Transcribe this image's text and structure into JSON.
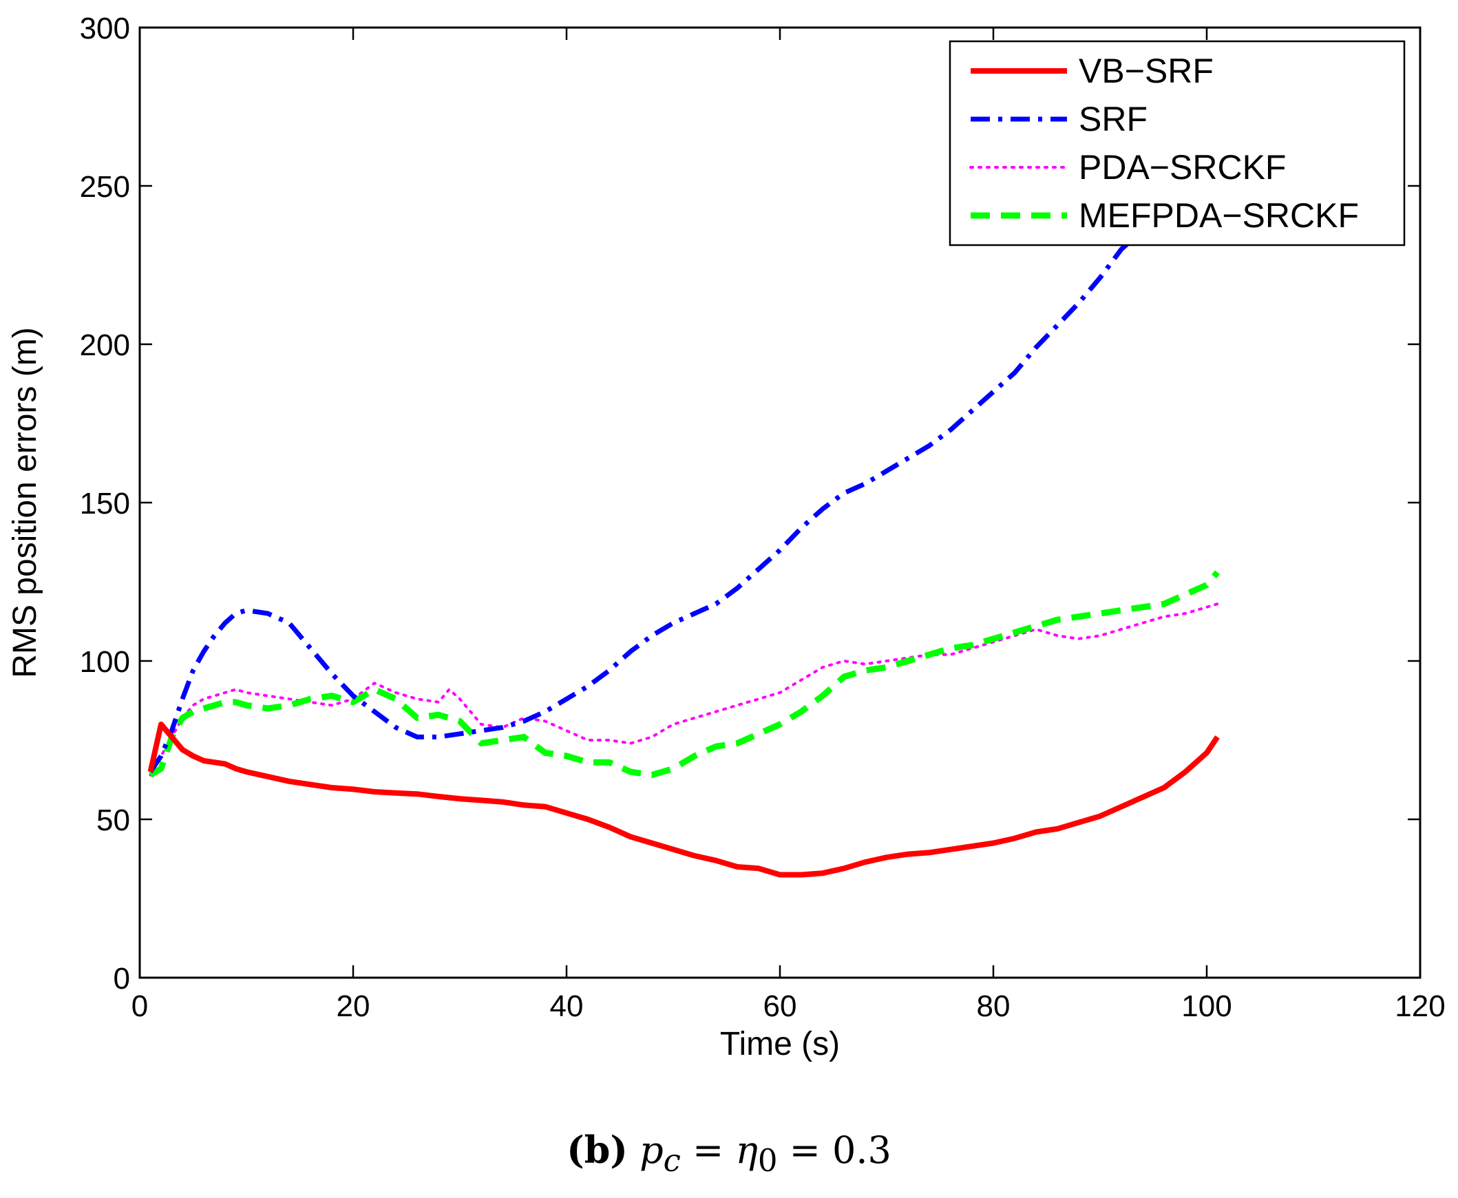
{
  "chart_data": {
    "type": "line",
    "title": "",
    "xlabel": "Time (s)",
    "ylabel": "RMS position errors (m)",
    "xlim": [
      0,
      120
    ],
    "ylim": [
      0,
      300
    ],
    "xticks": [
      0,
      20,
      40,
      60,
      80,
      100,
      120
    ],
    "yticks": [
      0,
      50,
      100,
      150,
      200,
      250,
      300
    ],
    "grid": false,
    "legend_position": "top-right",
    "series": [
      {
        "name": "VB−SRF",
        "color": "#ff0000",
        "style": "solid",
        "x": [
          1,
          2,
          3,
          4,
          5,
          6,
          7,
          8,
          9,
          10,
          12,
          14,
          16,
          18,
          20,
          22,
          24,
          26,
          28,
          30,
          32,
          34,
          36,
          38,
          40,
          42,
          44,
          46,
          48,
          50,
          52,
          54,
          56,
          58,
          60,
          62,
          64,
          66,
          68,
          70,
          72,
          74,
          76,
          78,
          80,
          82,
          84,
          86,
          88,
          90,
          92,
          94,
          96,
          98,
          100,
          101
        ],
        "y": [
          65,
          80,
          76,
          72,
          70,
          68.5,
          68,
          67.5,
          66,
          65,
          63.5,
          62,
          61,
          60,
          59.5,
          58.7,
          58.3,
          58,
          57.2,
          56.5,
          56,
          55.5,
          54.5,
          54,
          52,
          50,
          47.5,
          44.5,
          42.5,
          40.5,
          38.5,
          37,
          35,
          34.5,
          32.5,
          32.5,
          33,
          34.5,
          36.5,
          38,
          39,
          39.5,
          40.5,
          41.5,
          42.5,
          44,
          46,
          47,
          49,
          51,
          54,
          57,
          60,
          65,
          71,
          76
        ]
      },
      {
        "name": "SRF",
        "color": "#0000ff",
        "style": "dashdot",
        "x": [
          1,
          2,
          3,
          4,
          5,
          6,
          7,
          8,
          9,
          10,
          12,
          14,
          16,
          18,
          20,
          22,
          24,
          26,
          28,
          30,
          32,
          34,
          36,
          38,
          40,
          42,
          44,
          46,
          48,
          50,
          52,
          54,
          56,
          58,
          60,
          62,
          64,
          66,
          68,
          70,
          72,
          74,
          76,
          78,
          80,
          82,
          84,
          86,
          88,
          90,
          92,
          93
        ],
        "y": [
          65,
          70,
          78,
          88,
          97,
          103,
          108,
          112,
          115,
          116,
          115,
          112,
          104,
          96,
          89,
          84,
          79,
          76,
          76,
          77,
          78,
          79,
          81,
          84,
          88,
          92,
          97,
          103,
          108,
          112,
          115,
          118,
          123,
          129,
          135,
          142,
          148,
          153,
          156,
          160,
          164,
          168,
          173,
          179,
          185,
          191,
          199,
          206,
          213,
          221,
          230,
          233
        ]
      },
      {
        "name": "PDA−SRCKF",
        "color": "#ff00ff",
        "style": "dotted",
        "x": [
          1,
          2,
          3,
          4,
          5,
          6,
          7,
          8,
          9,
          10,
          12,
          14,
          16,
          18,
          20,
          22,
          24,
          26,
          28,
          29,
          30,
          32,
          34,
          36,
          38,
          40,
          42,
          44,
          46,
          48,
          50,
          52,
          54,
          56,
          58,
          60,
          62,
          64,
          66,
          68,
          70,
          72,
          74,
          76,
          78,
          80,
          82,
          84,
          86,
          88,
          90,
          92,
          94,
          96,
          98,
          100,
          101
        ],
        "y": [
          64,
          70,
          76,
          82,
          86,
          88,
          89,
          90,
          91,
          90,
          89,
          88,
          87,
          86,
          88,
          93,
          90,
          88,
          87,
          91,
          88,
          80,
          79,
          82,
          81,
          78,
          75,
          75,
          74,
          76,
          80,
          82,
          84,
          86,
          88,
          90,
          94,
          98,
          100,
          99,
          100,
          101,
          102,
          102,
          104,
          106,
          108,
          110,
          108,
          107,
          108,
          110,
          112,
          114,
          115,
          117,
          118
        ]
      },
      {
        "name": "MEFPDA−SRCKF",
        "color": "#00ff00",
        "style": "dashed",
        "x": [
          1,
          2,
          3,
          4,
          5,
          6,
          7,
          8,
          9,
          10,
          12,
          14,
          16,
          18,
          20,
          22,
          24,
          26,
          28,
          30,
          32,
          34,
          36,
          38,
          40,
          42,
          44,
          46,
          48,
          50,
          52,
          54,
          56,
          58,
          60,
          62,
          64,
          66,
          68,
          70,
          72,
          74,
          76,
          78,
          80,
          82,
          84,
          86,
          88,
          90,
          92,
          94,
          96,
          98,
          100,
          101
        ],
        "y": [
          64,
          66,
          76,
          82,
          84,
          85,
          86,
          87,
          87,
          86,
          85,
          86,
          88,
          89,
          87,
          91,
          88,
          82,
          83,
          81,
          74,
          75,
          76,
          71,
          70,
          68,
          68,
          65,
          64,
          66,
          70,
          73,
          74,
          77,
          80,
          84,
          89,
          95,
          97,
          98,
          100,
          102,
          104,
          105,
          107,
          109,
          111,
          113,
          114,
          115,
          116,
          117,
          118,
          121,
          124,
          128
        ]
      }
    ]
  },
  "caption": {
    "letter": "(b)",
    "math": "p",
    "math_sub": "c",
    "math_eq1": " = ",
    "math_eta": "η",
    "math_eta_sub": "0",
    "math_eq2": " = 0.3"
  }
}
